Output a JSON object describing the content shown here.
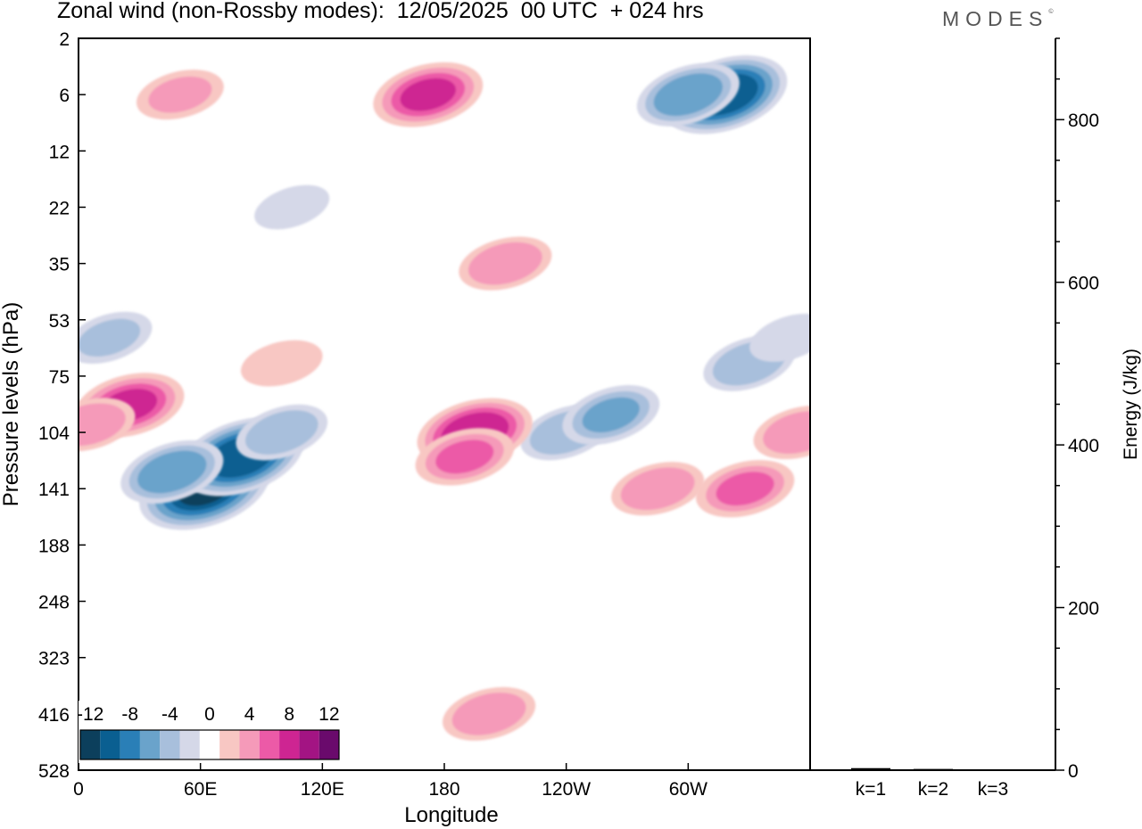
{
  "title": "Zonal wind (non-Rossby modes):  12/05/2025  00 UTC  + 024 hrs",
  "brand": "MODES",
  "brand_mark": "©",
  "colors": {
    "frame": "#000000",
    "neg": [
      "#0c3f5c",
      "#0a5f91",
      "#2a7fb7",
      "#6aa3cb",
      "#a8bfdc",
      "#d5d8e8"
    ],
    "zero": "#ffffff",
    "pos": [
      "#f8c7c3",
      "#f59ab9",
      "#ec5aa7",
      "#ce2592",
      "#a31483",
      "#6a0a6c"
    ]
  },
  "chart_data": [
    {
      "type": "heatmap",
      "title": "Zonal wind (non-Rossby modes):  12/05/2025  00 UTC  + 024 hrs",
      "xlabel": "Longitude",
      "ylabel": "Pressure levels (hPa)",
      "x_ticks": [
        "0",
        "60E",
        "120E",
        "180",
        "120W",
        "60W"
      ],
      "x_tick_values": [
        0,
        60,
        120,
        180,
        240,
        300
      ],
      "xlim": [
        0,
        360
      ],
      "y_ticks": [
        "2",
        "6",
        "12",
        "22",
        "35",
        "53",
        "75",
        "104",
        "141",
        "188",
        "248",
        "323",
        "416",
        "528"
      ],
      "colorbar": {
        "labels": [
          "-12",
          "-8",
          "-4",
          "0",
          "4",
          "8",
          "12"
        ],
        "levels": [
          -14,
          -12,
          -10,
          -8,
          -6,
          -4,
          -2,
          2,
          4,
          6,
          8,
          10,
          12,
          14
        ]
      },
      "features": [
        {
          "lon": 62,
          "level": "141",
          "value": -13
        },
        {
          "lon": 80,
          "level": "120",
          "value": -12
        },
        {
          "lon": 46,
          "level": "130",
          "value": -8
        },
        {
          "lon": 100,
          "level": "104",
          "value": -6
        },
        {
          "lon": 15,
          "level": "60",
          "value": -5
        },
        {
          "lon": 105,
          "level": "22",
          "value": -3
        },
        {
          "lon": 318,
          "level": "6",
          "value": -12
        },
        {
          "lon": 300,
          "level": "6",
          "value": -8
        },
        {
          "lon": 240,
          "level": "104",
          "value": -6
        },
        {
          "lon": 262,
          "level": "95",
          "value": -7
        },
        {
          "lon": 330,
          "level": "70",
          "value": -6
        },
        {
          "lon": 350,
          "level": "60",
          "value": -4
        },
        {
          "lon": 25,
          "level": "90",
          "value": 9
        },
        {
          "lon": 5,
          "level": "100",
          "value": 6
        },
        {
          "lon": 100,
          "level": "70",
          "value": 4
        },
        {
          "lon": 195,
          "level": "104",
          "value": 10
        },
        {
          "lon": 190,
          "level": "120",
          "value": 7
        },
        {
          "lon": 210,
          "level": "35",
          "value": 6
        },
        {
          "lon": 172,
          "level": "6",
          "value": 9
        },
        {
          "lon": 285,
          "level": "141",
          "value": 6
        },
        {
          "lon": 328,
          "level": "141",
          "value": 7
        },
        {
          "lon": 355,
          "level": "104",
          "value": 6
        },
        {
          "lon": 202,
          "level": "416",
          "value": 6
        },
        {
          "lon": 50,
          "level": "6",
          "value": 5
        }
      ]
    },
    {
      "type": "bar",
      "ylabel": "Energy (J/kg)",
      "categories": [
        "k=1",
        "k=2",
        "k=3"
      ],
      "values": [
        2.5,
        1.5,
        1.0
      ],
      "ylim": [
        0,
        900
      ],
      "y_ticks": [
        0,
        200,
        400,
        600,
        800
      ]
    }
  ]
}
